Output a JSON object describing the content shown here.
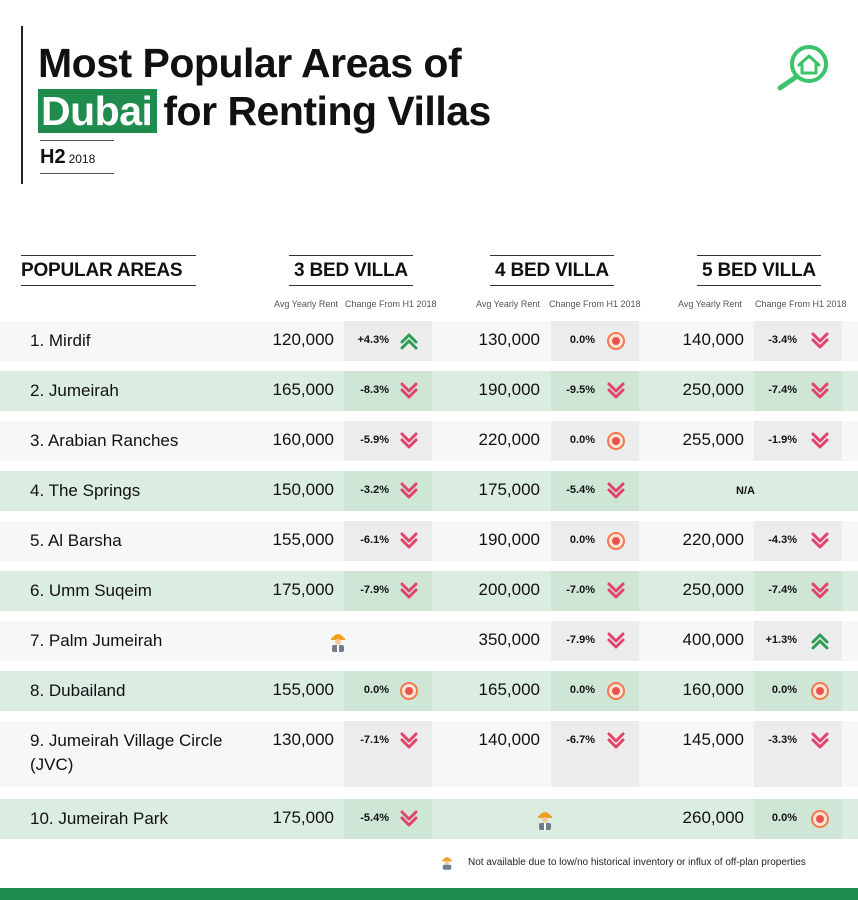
{
  "title": {
    "line1": "Most Popular Areas of",
    "highlight": "Dubai",
    "line2_rest": "for Renting Villas",
    "edition_half": "H2",
    "edition_year": "2018"
  },
  "logo": {
    "icon": "search-home-icon",
    "color": "#3cc36a"
  },
  "columns": {
    "areas": "POPULAR AREAS",
    "villa3": "3 BED VILLA",
    "villa4": "4 BED VILLA",
    "villa5": "5 BED VILLA",
    "sub_rent": "Avg Yearly Rent",
    "sub_change": "Change From H1 2018"
  },
  "colors": {
    "brand_green": "#1f8c4e",
    "row_alt": "#dbede1",
    "up": "#2e9e54",
    "down": "#e0446a",
    "flat": "#f07a4e"
  },
  "rows": [
    {
      "area": "1. Mirdif",
      "cells": [
        {
          "rent": "120,000",
          "change": "+4.3%",
          "trend": "up"
        },
        {
          "rent": "130,000",
          "change": "0.0%",
          "trend": "flat"
        },
        {
          "rent": "140,000",
          "change": "-3.4%",
          "trend": "down"
        }
      ]
    },
    {
      "area": "2. Jumeirah",
      "cells": [
        {
          "rent": "165,000",
          "change": "-8.3%",
          "trend": "down"
        },
        {
          "rent": "190,000",
          "change": "-9.5%",
          "trend": "down"
        },
        {
          "rent": "250,000",
          "change": "-7.4%",
          "trend": "down"
        }
      ]
    },
    {
      "area": "3. Arabian Ranches",
      "cells": [
        {
          "rent": "160,000",
          "change": "-5.9%",
          "trend": "down"
        },
        {
          "rent": "220,000",
          "change": "0.0%",
          "trend": "flat"
        },
        {
          "rent": "255,000",
          "change": "-1.9%",
          "trend": "down"
        }
      ]
    },
    {
      "area": "4. The Springs",
      "cells": [
        {
          "rent": "150,000",
          "change": "-3.2%",
          "trend": "down"
        },
        {
          "rent": "175,000",
          "change": "-5.4%",
          "trend": "down"
        },
        {
          "na": "N/A"
        }
      ]
    },
    {
      "area": "5. Al Barsha",
      "cells": [
        {
          "rent": "155,000",
          "change": "-6.1%",
          "trend": "down"
        },
        {
          "rent": "190,000",
          "change": "0.0%",
          "trend": "flat"
        },
        {
          "rent": "220,000",
          "change": "-4.3%",
          "trend": "down"
        }
      ]
    },
    {
      "area": "6. Umm Suqeim",
      "cells": [
        {
          "rent": "175,000",
          "change": "-7.9%",
          "trend": "down"
        },
        {
          "rent": "200,000",
          "change": "-7.0%",
          "trend": "down"
        },
        {
          "rent": "250,000",
          "change": "-7.4%",
          "trend": "down"
        }
      ]
    },
    {
      "area": "7. Palm Jumeirah",
      "cells": [
        {
          "worker": true
        },
        {
          "rent": "350,000",
          "change": "-7.9%",
          "trend": "down"
        },
        {
          "rent": "400,000",
          "change": "+1.3%",
          "trend": "up"
        }
      ]
    },
    {
      "area": "8. Dubailand",
      "cells": [
        {
          "rent": "155,000",
          "change": "0.0%",
          "trend": "flat"
        },
        {
          "rent": "165,000",
          "change": "0.0%",
          "trend": "flat"
        },
        {
          "rent": "160,000",
          "change": "0.0%",
          "trend": "flat"
        }
      ]
    },
    {
      "area": "9. Jumeirah Village Circle",
      "area_line2": "(JVC)",
      "cells": [
        {
          "rent": "130,000",
          "change": "-7.1%",
          "trend": "down"
        },
        {
          "rent": "140,000",
          "change": "-6.7%",
          "trend": "down"
        },
        {
          "rent": "145,000",
          "change": "-3.3%",
          "trend": "down"
        }
      ]
    },
    {
      "area": "10. Jumeirah Park",
      "cells": [
        {
          "rent": "175,000",
          "change": "-5.4%",
          "trend": "down"
        },
        {
          "worker": true
        },
        {
          "rent": "260,000",
          "change": "0.0%",
          "trend": "flat"
        }
      ]
    }
  ],
  "footnote": "Not available due to low/no historical inventory or influx of off-plan properties"
}
